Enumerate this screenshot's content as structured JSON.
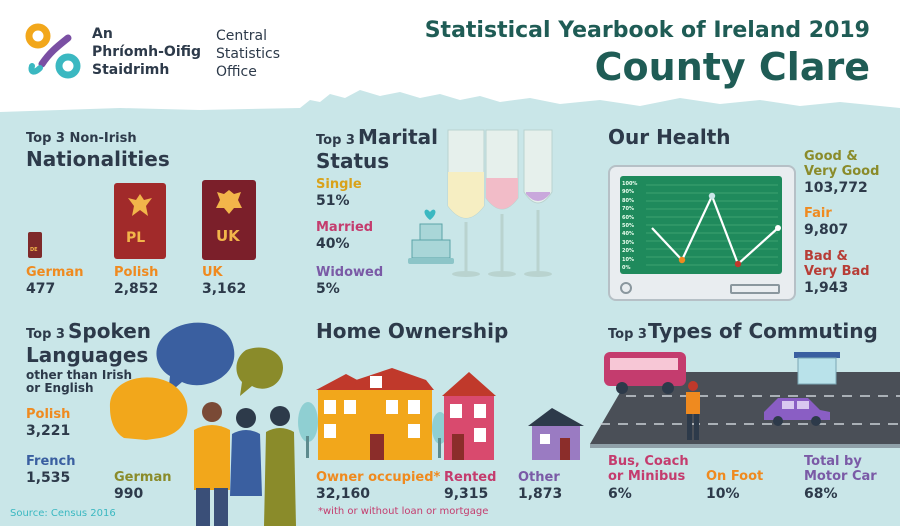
{
  "header": {
    "org_line1": "An",
    "org_line2": "Phríomh-Oifig",
    "org_line3": "Staidrimh",
    "org_en1": "Central",
    "org_en2": "Statistics",
    "org_en3": "Office",
    "yearbook": "Statistical Yearbook of Ireland 2019",
    "county": "County Clare"
  },
  "nationalities": {
    "pre": "Top 3 Non-Irish",
    "title": "Nationalities",
    "items": [
      {
        "name": "German",
        "value": "477",
        "badge": "DE"
      },
      {
        "name": "Polish",
        "value": "2,852",
        "badge": "PL"
      },
      {
        "name": "UK",
        "value": "3,162",
        "badge": "UK"
      }
    ]
  },
  "marital": {
    "pre": "Top 3",
    "title1": "Marital",
    "title2": "Status",
    "items": [
      {
        "name": "Single",
        "value": "51%"
      },
      {
        "name": "Married",
        "value": "40%"
      },
      {
        "name": "Widowed",
        "value": "5%"
      }
    ]
  },
  "health": {
    "title": "Our Health",
    "axis": [
      "100%",
      "90%",
      "80%",
      "70%",
      "60%",
      "50%",
      "40%",
      "30%",
      "20%",
      "10%",
      "0%"
    ],
    "items": [
      {
        "name1": "Good &",
        "name2": "Very Good",
        "value": "103,772"
      },
      {
        "name1": "Fair",
        "name2": "",
        "value": "9,807"
      },
      {
        "name1": "Bad &",
        "name2": "Very Bad",
        "value": "1,943"
      }
    ]
  },
  "languages": {
    "pre": "Top 3",
    "title1": "Spoken",
    "title2": "Languages",
    "sub1": "other than Irish",
    "sub2": "or English",
    "items": [
      {
        "name": "Polish",
        "value": "3,221"
      },
      {
        "name": "French",
        "value": "1,535"
      },
      {
        "name": "German",
        "value": "990"
      }
    ]
  },
  "home": {
    "title": "Home Ownership",
    "items": [
      {
        "name": "Owner occupied*",
        "value": "32,160"
      },
      {
        "name": "Rented",
        "value": "9,315"
      },
      {
        "name": "Other",
        "value": "1,873"
      }
    ],
    "note": "*with or without loan or mortgage"
  },
  "commuting": {
    "pre": "Top 3",
    "title": "Types of Commuting",
    "items": [
      {
        "name1": "Bus, Coach",
        "name2": "or Minibus",
        "value": "6%"
      },
      {
        "name1": "On Foot",
        "name2": "",
        "value": "10%"
      },
      {
        "name1": "Total by",
        "name2": "Motor Car",
        "value": "68%"
      }
    ]
  },
  "source": "Source: Census 2016"
}
